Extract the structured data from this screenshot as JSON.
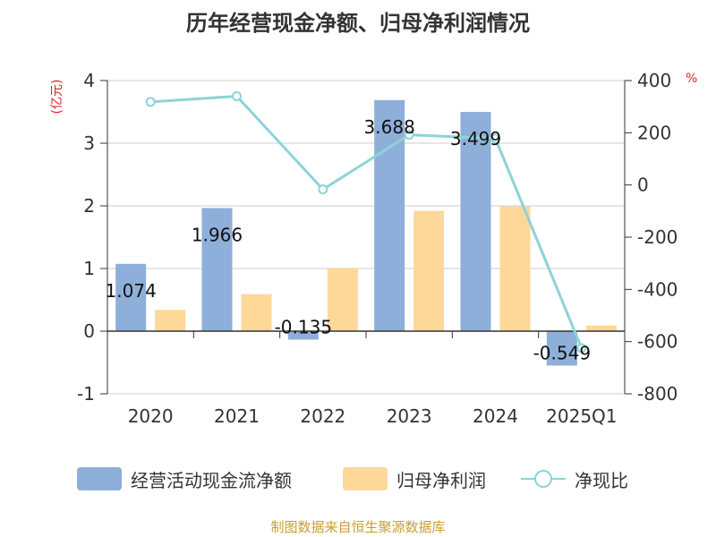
{
  "title": "历年经营现金净额、归母净利润情况",
  "source": "制图数据来自恒生聚源数据库",
  "y_left_unit": "(亿元)",
  "y_right_unit": "%",
  "colors": {
    "operating": "#8eafd9",
    "net_profit": "#fdd899",
    "ratio": "#8dd3d6",
    "axis": "#333333",
    "grid": "#cccccc"
  },
  "chart_data": {
    "type": "bar",
    "categories": [
      "2020",
      "2021",
      "2022",
      "2023",
      "2024",
      "2025Q1"
    ],
    "series": [
      {
        "name": "经营活动现金流净额",
        "type": "bar",
        "axis": "left",
        "values": [
          1.074,
          1.966,
          -0.135,
          3.688,
          3.499,
          -0.549
        ],
        "labels": [
          "1.074",
          "1.966",
          "-0.135",
          "3.688",
          "3.499",
          "-0.549"
        ]
      },
      {
        "name": "归母净利润",
        "type": "bar",
        "axis": "left",
        "values": [
          0.34,
          0.59,
          1.0,
          1.92,
          1.99,
          0.09
        ]
      },
      {
        "name": "净现比",
        "type": "line",
        "axis": "right",
        "values": [
          318,
          340,
          -17,
          192,
          178,
          -625
        ]
      }
    ],
    "y_left": {
      "range": [
        -1,
        4
      ],
      "ticks": [
        -1,
        0,
        1,
        2,
        3,
        4
      ]
    },
    "y_right": {
      "range": [
        -800,
        400
      ],
      "ticks": [
        -800,
        -600,
        -400,
        -200,
        0,
        200,
        400
      ]
    },
    "grid": true,
    "legend_position": "bottom"
  }
}
